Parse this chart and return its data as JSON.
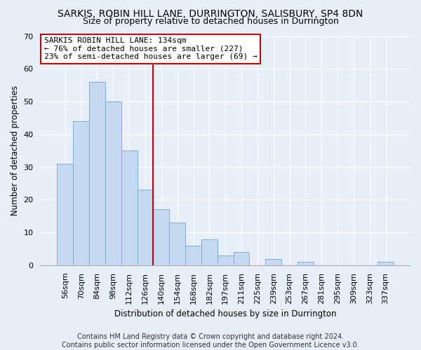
{
  "title": "SARKIS, ROBIN HILL LANE, DURRINGTON, SALISBURY, SP4 8DN",
  "subtitle": "Size of property relative to detached houses in Durrington",
  "xlabel": "Distribution of detached houses by size in Durrington",
  "ylabel": "Number of detached properties",
  "bar_labels": [
    "56sqm",
    "70sqm",
    "84sqm",
    "98sqm",
    "112sqm",
    "126sqm",
    "140sqm",
    "154sqm",
    "168sqm",
    "182sqm",
    "197sqm",
    "211sqm",
    "225sqm",
    "239sqm",
    "253sqm",
    "267sqm",
    "281sqm",
    "295sqm",
    "309sqm",
    "323sqm",
    "337sqm"
  ],
  "bar_values": [
    31,
    44,
    56,
    50,
    35,
    23,
    17,
    13,
    6,
    8,
    3,
    4,
    0,
    2,
    0,
    1,
    0,
    0,
    0,
    0,
    1
  ],
  "bar_color": "#c6d9f0",
  "bar_edge_color": "#7bafd4",
  "vline_index": 6,
  "vline_color": "#cc0000",
  "annotation_text": "SARKIS ROBIN HILL LANE: 134sqm\n← 76% of detached houses are smaller (227)\n23% of semi-detached houses are larger (69) →",
  "annotation_box_color": "white",
  "annotation_box_edge": "#cc0000",
  "ylim": [
    0,
    70
  ],
  "yticks": [
    0,
    10,
    20,
    30,
    40,
    50,
    60,
    70
  ],
  "footer_text": "Contains HM Land Registry data © Crown copyright and database right 2024.\nContains public sector information licensed under the Open Government Licence v3.0.",
  "background_color": "#e8eef8",
  "plot_bg_color": "#e8eef8",
  "grid_color": "#ffffff",
  "title_fontsize": 10,
  "subtitle_fontsize": 9,
  "axis_label_fontsize": 8.5,
  "tick_fontsize": 8,
  "annotation_fontsize": 8,
  "footer_fontsize": 7
}
